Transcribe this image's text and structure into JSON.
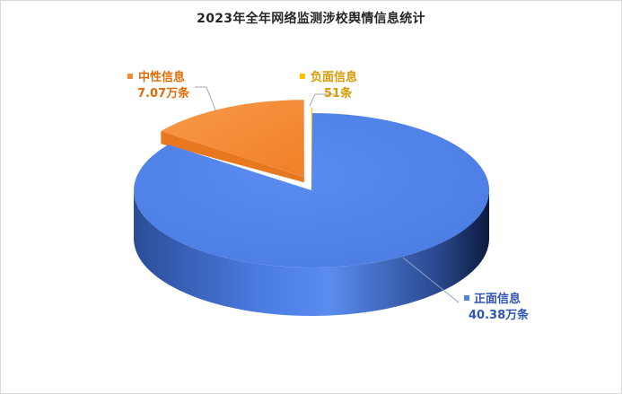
{
  "chart_data": {
    "type": "pie",
    "title": "2023年全年网络监测涉校舆情信息统计",
    "unit": "万条",
    "slices": [
      {
        "name": "正面信息",
        "value": 40.38,
        "value_label": "40.38万条",
        "color": "#4f81e8"
      },
      {
        "name": "中性信息",
        "value": 7.07,
        "value_label": "7.07万条",
        "color": "#f58a34"
      },
      {
        "name": "负面信息",
        "value": 0.0051,
        "value_label": "51条",
        "color": "#ffc000"
      }
    ],
    "label_colors": {
      "正面信息": "#2e54b5",
      "中性信息": "#e36c09",
      "负面信息": "#d99a00"
    }
  }
}
